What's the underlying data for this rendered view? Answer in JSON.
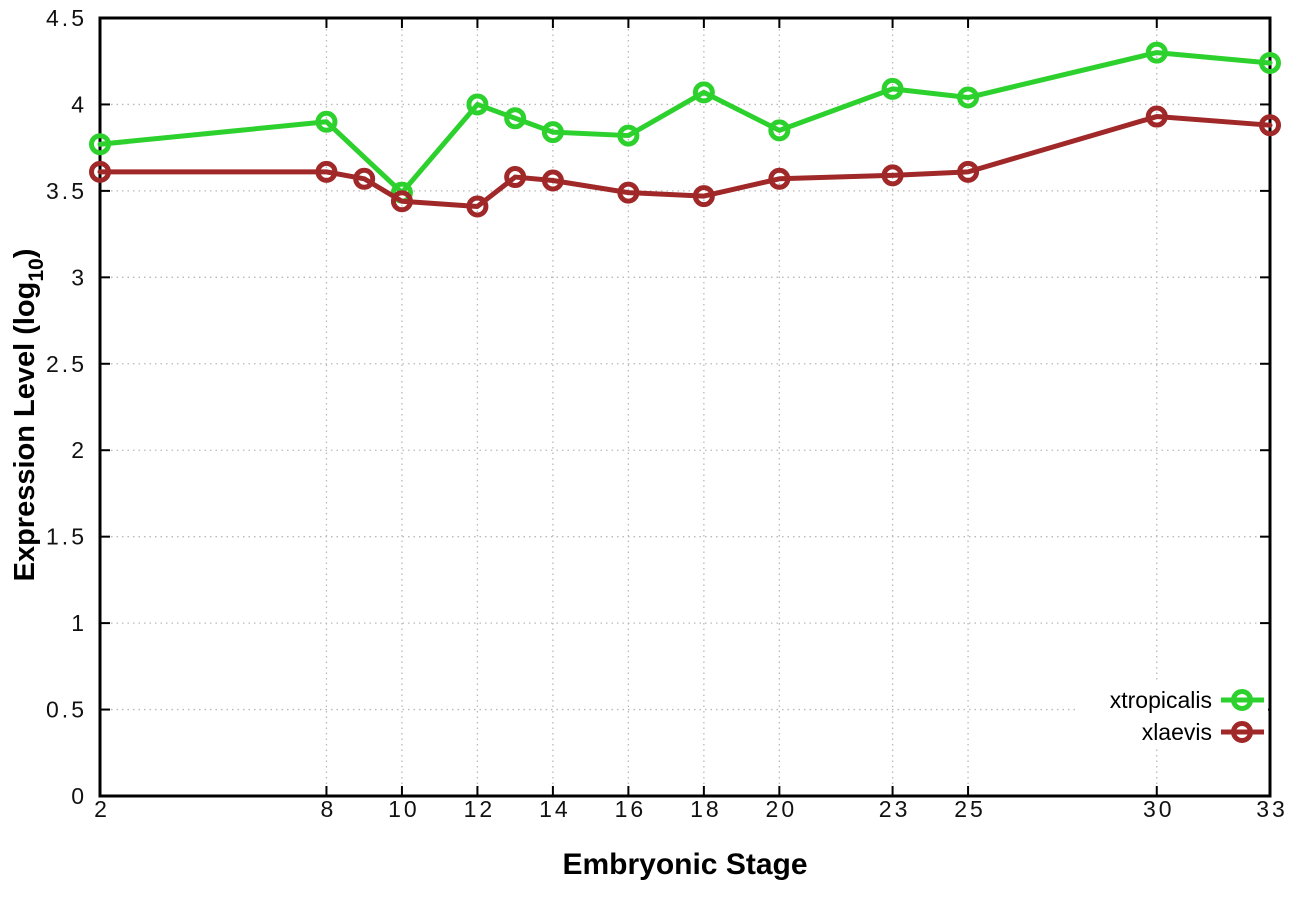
{
  "chart_data": {
    "type": "line",
    "title": "",
    "xlabel": "Embryonic Stage",
    "ylabel": "Expression Level (log10)",
    "ylabel_parts": {
      "main": "Expression Level (log",
      "sub": "10",
      "close": ")"
    },
    "xlim": [
      2,
      33
    ],
    "ylim": [
      0,
      4.5
    ],
    "x_ticks": [
      2,
      8,
      10,
      12,
      14,
      16,
      18,
      20,
      23,
      25,
      30,
      33
    ],
    "y_ticks": [
      0,
      0.5,
      1,
      1.5,
      2,
      2.5,
      3,
      3.5,
      4,
      4.5
    ],
    "grid": true,
    "legend_position": "bottom-right",
    "colors": {
      "background": "#ffffff",
      "axis": "#000000",
      "grid": "#b9b9b9",
      "tick_label": "#111111"
    },
    "series": [
      {
        "name": "xtropicalis",
        "color": "#2dd12d",
        "marker": "open-circle",
        "x": [
          2,
          8,
          10,
          12,
          13,
          14,
          16,
          18,
          20,
          23,
          25,
          30,
          33
        ],
        "y": [
          3.77,
          3.9,
          3.49,
          4.0,
          3.92,
          3.84,
          3.82,
          4.07,
          3.85,
          4.09,
          4.04,
          4.3,
          4.24
        ]
      },
      {
        "name": "xlaevis",
        "color": "#a02828",
        "marker": "open-circle",
        "x": [
          2,
          8,
          9,
          10,
          12,
          13,
          14,
          16,
          18,
          20,
          23,
          25,
          30,
          33
        ],
        "y": [
          3.61,
          3.61,
          3.57,
          3.44,
          3.41,
          3.58,
          3.56,
          3.49,
          3.47,
          3.57,
          3.59,
          3.61,
          3.93,
          3.88
        ]
      }
    ]
  }
}
